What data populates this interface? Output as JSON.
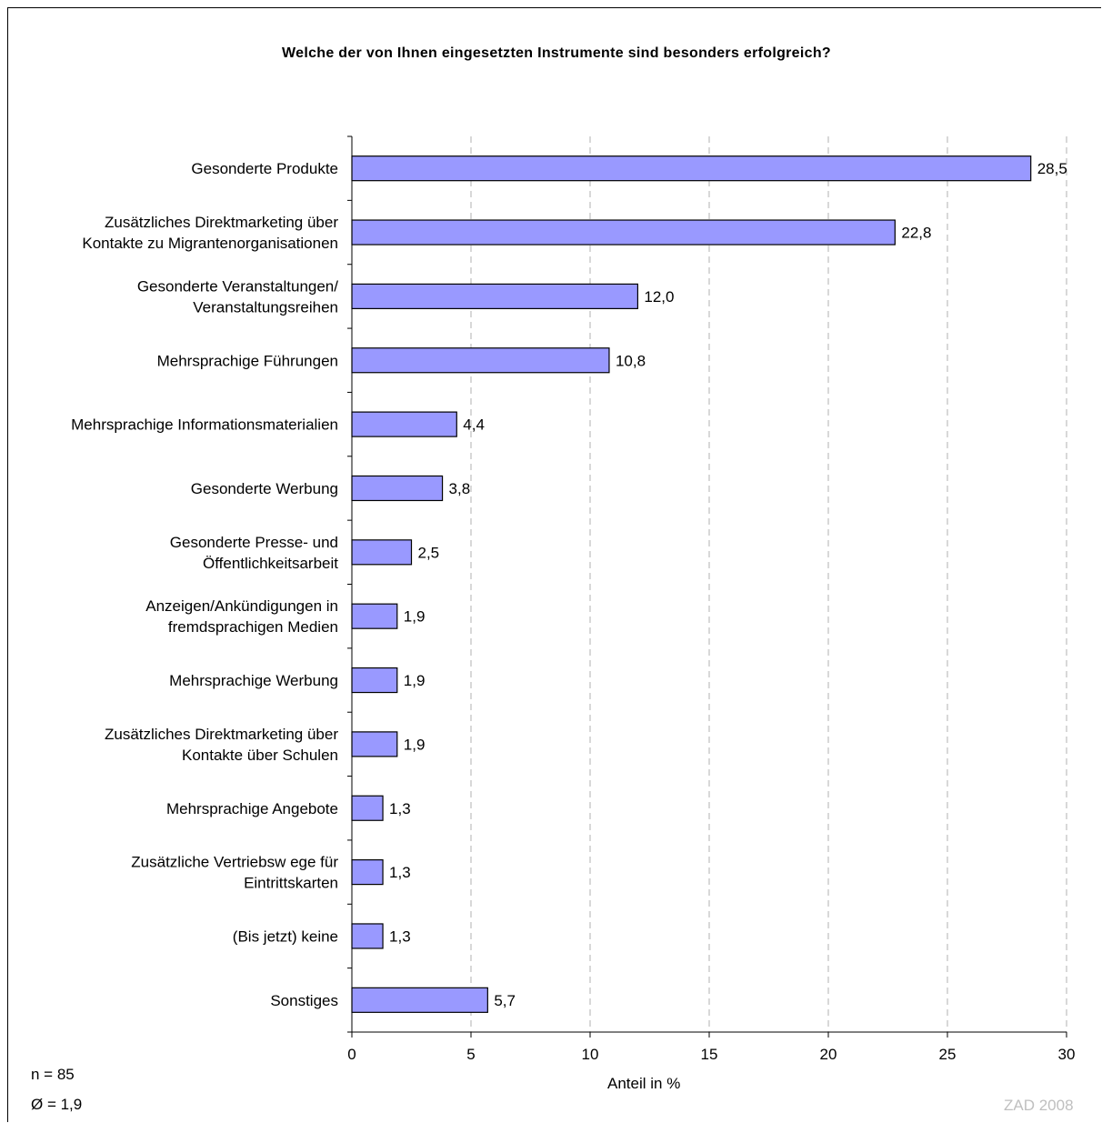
{
  "chart_data": {
    "type": "bar",
    "orientation": "horizontal",
    "title": "Welche der von Ihnen eingesetzten Instrumente sind besonders erfolgreich?",
    "xlabel": "Anteil in %",
    "ylabel": "",
    "xlim": [
      0,
      30
    ],
    "xticks": [
      0,
      5,
      10,
      15,
      20,
      25,
      30
    ],
    "grid": "vertical dashed",
    "bar_color": "#9999FF",
    "categories": [
      [
        "Gesonderte Produkte"
      ],
      [
        "Zusätzliches Direktmarketing über",
        "Kontakte zu Migrantenorganisationen"
      ],
      [
        "Gesonderte Veranstaltungen/",
        "Veranstaltungsreihen"
      ],
      [
        "Mehrsprachige Führungen"
      ],
      [
        "Mehrsprachige Informationsmaterialien"
      ],
      [
        "Gesonderte Werbung"
      ],
      [
        "Gesonderte Presse- und",
        "Öffentlichkeitsarbeit"
      ],
      [
        "Anzeigen/Ankündigungen in",
        "fremdsprachigen Medien"
      ],
      [
        "Mehrsprachige Werbung"
      ],
      [
        "Zusätzliches Direktmarketing über",
        "Kontakte über Schulen"
      ],
      [
        "Mehrsprachige Angebote"
      ],
      [
        "Zusätzliche Vertriebsw ege für",
        "Eintrittskarten"
      ],
      [
        "(Bis jetzt) keine"
      ],
      [
        "Sonstiges"
      ]
    ],
    "values": [
      28.5,
      22.8,
      12.0,
      10.8,
      4.4,
      3.8,
      2.5,
      1.9,
      1.9,
      1.9,
      1.3,
      1.3,
      1.3,
      5.7
    ],
    "value_labels": [
      "28,5",
      "22,8",
      "12,0",
      "10,8",
      "4,4",
      "3,8",
      "2,5",
      "1,9",
      "1,9",
      "1,9",
      "1,3",
      "1,3",
      "1,3",
      "5,7"
    ]
  },
  "notes": {
    "n": "n = 85",
    "avg": "Ø = 1,9",
    "source": "ZAD 2008"
  }
}
